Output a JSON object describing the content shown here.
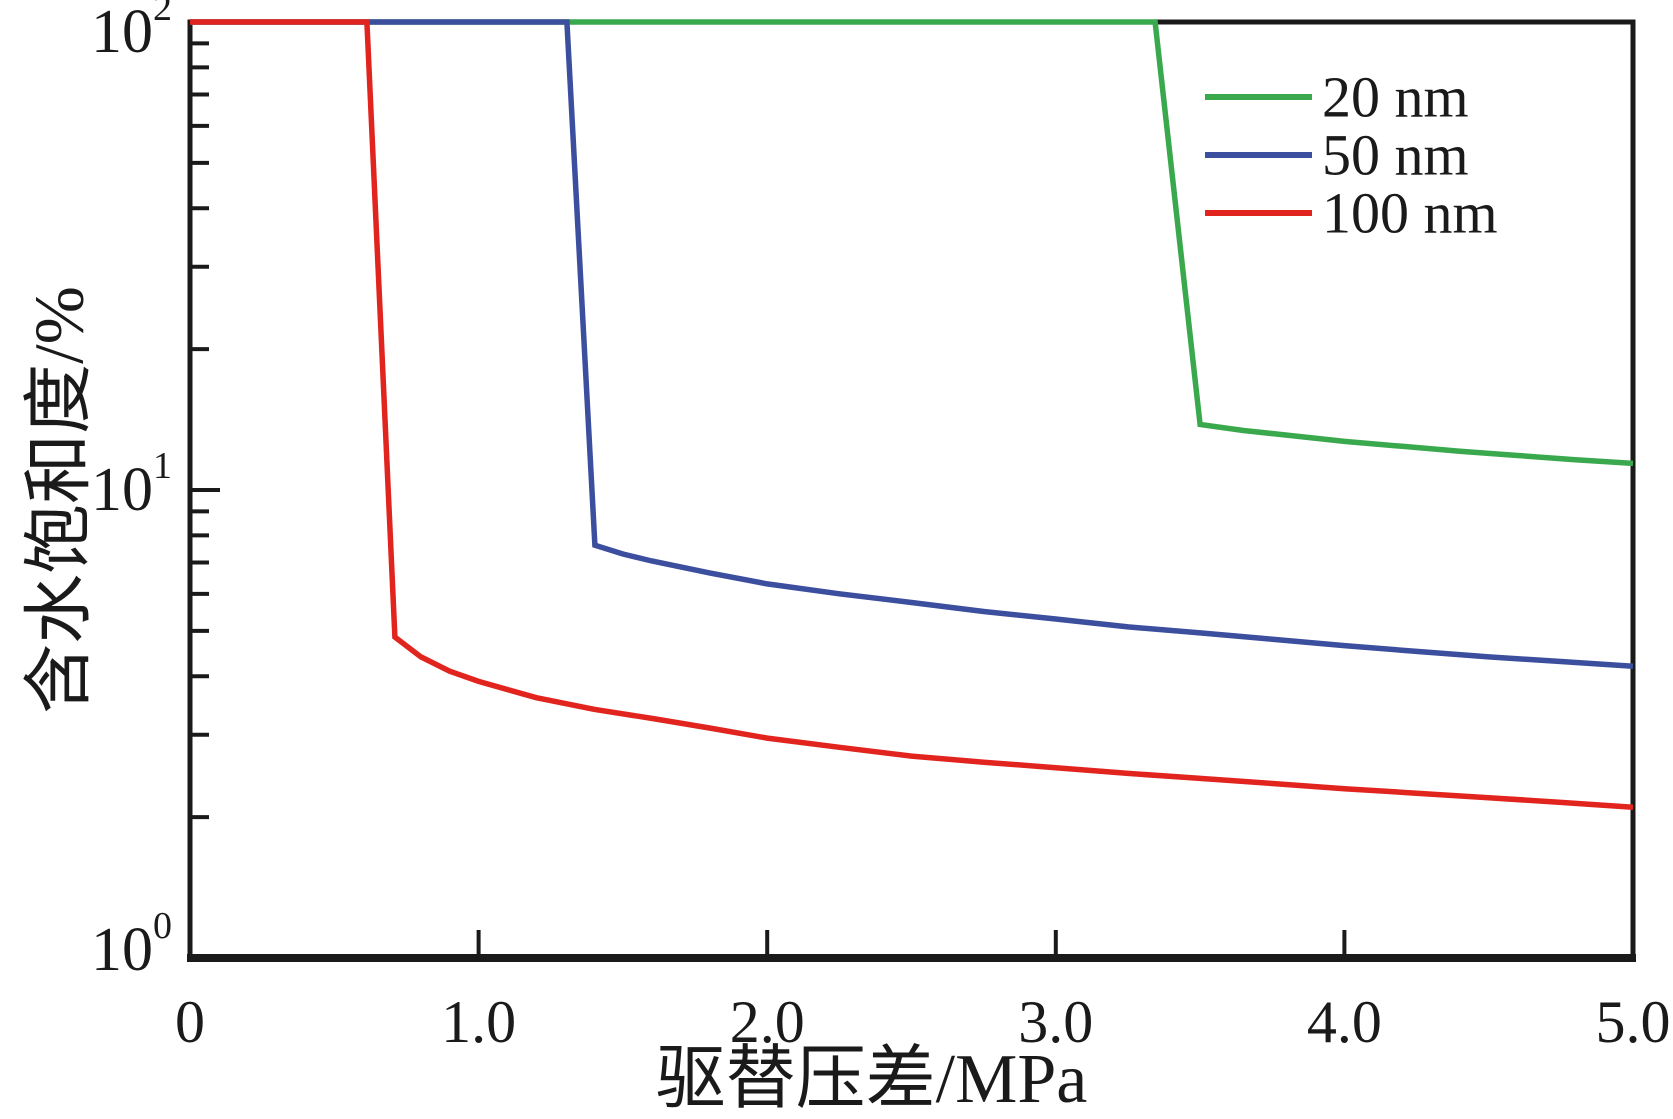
{
  "chart_data": {
    "type": "line",
    "title": "",
    "xlabel": "驱替压差/MPa",
    "ylabel": "含水饱和度/%",
    "x_axis": {
      "scale": "linear",
      "min": 0,
      "max": 5,
      "ticks": [
        0,
        1,
        2,
        3,
        4,
        5
      ],
      "tick_labels": [
        "0",
        "1.0",
        "2.0",
        "3.0",
        "4.0",
        "5.0"
      ]
    },
    "y_axis": {
      "scale": "log",
      "min": 1,
      "max": 100,
      "ticks": [
        1,
        10,
        100
      ],
      "tick_labels": [
        "10^0",
        "10^1",
        "10^2"
      ],
      "minor_ticks": "log-decades"
    },
    "grid": false,
    "legend": {
      "position": "top-right",
      "entries": [
        "20 nm",
        "50 nm",
        "100 nm"
      ]
    },
    "axis_color": "#1a1a1a",
    "series": [
      {
        "name": "20 nm",
        "color": "#3aa94d",
        "description": "stays at 100% until breakthrough pressure ~3.35 MPa, drops to ~13.8%, then slowly declines",
        "points": [
          [
            0,
            100
          ],
          [
            3.344,
            100
          ],
          [
            3.5,
            13.8
          ],
          [
            3.65,
            13.4
          ],
          [
            3.8,
            13.1
          ],
          [
            4.0,
            12.7
          ],
          [
            4.2,
            12.4
          ],
          [
            4.4,
            12.1
          ],
          [
            4.6,
            11.85
          ],
          [
            4.8,
            11.6
          ],
          [
            5.0,
            11.4
          ]
        ]
      },
      {
        "name": "50 nm",
        "color": "#3c4e9e",
        "description": "stays at 100% until breakthrough pressure ~1.31 MPa, drops to ~7.6%, then slowly declines",
        "points": [
          [
            0,
            100
          ],
          [
            1.306,
            100
          ],
          [
            1.403,
            7.62
          ],
          [
            1.5,
            7.3
          ],
          [
            1.6,
            7.05
          ],
          [
            1.8,
            6.65
          ],
          [
            2.0,
            6.3
          ],
          [
            2.25,
            6.0
          ],
          [
            2.5,
            5.75
          ],
          [
            2.75,
            5.5
          ],
          [
            3.0,
            5.3
          ],
          [
            3.25,
            5.1
          ],
          [
            3.5,
            4.95
          ],
          [
            3.75,
            4.8
          ],
          [
            4.0,
            4.65
          ],
          [
            4.25,
            4.52
          ],
          [
            4.5,
            4.4
          ],
          [
            4.75,
            4.3
          ],
          [
            5.0,
            4.2
          ]
        ]
      },
      {
        "name": "100 nm",
        "color": "#e2241f",
        "description": "stays at 100% until breakthrough pressure ~0.61 MPa, drops to ~4.85%, then slowly declines",
        "points": [
          [
            0,
            100
          ],
          [
            0.613,
            100
          ],
          [
            0.71,
            4.85
          ],
          [
            0.8,
            4.4
          ],
          [
            0.9,
            4.1
          ],
          [
            1.0,
            3.9
          ],
          [
            1.2,
            3.6
          ],
          [
            1.4,
            3.4
          ],
          [
            1.6,
            3.25
          ],
          [
            1.8,
            3.1
          ],
          [
            2.0,
            2.95
          ],
          [
            2.25,
            2.82
          ],
          [
            2.5,
            2.7
          ],
          [
            2.75,
            2.62
          ],
          [
            3.0,
            2.55
          ],
          [
            3.25,
            2.48
          ],
          [
            3.5,
            2.42
          ],
          [
            3.75,
            2.36
          ],
          [
            4.0,
            2.3
          ],
          [
            4.25,
            2.25
          ],
          [
            4.5,
            2.2
          ],
          [
            4.75,
            2.15
          ],
          [
            5.0,
            2.1
          ]
        ]
      }
    ]
  }
}
